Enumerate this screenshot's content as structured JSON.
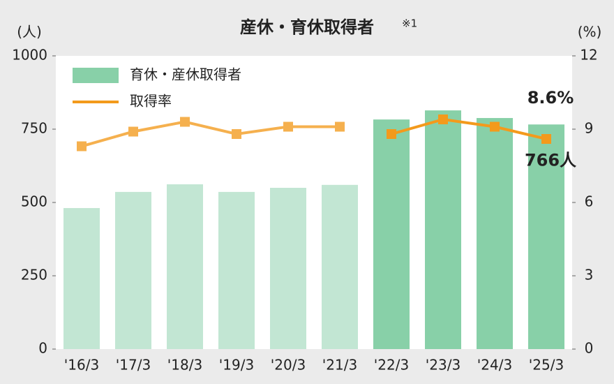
{
  "chart_data": {
    "type": "bar-line",
    "title": "産休・育休取得者",
    "title_note": "※1",
    "y_label": "(人)",
    "y2_label": "(%)",
    "categories": [
      "'16/3",
      "'17/3",
      "'18/3",
      "'19/3",
      "'20/3",
      "'21/3",
      "'22/3",
      "'23/3",
      "'24/3",
      "'25/3"
    ],
    "series": [
      {
        "name": "育休・産休取得者",
        "type": "bar",
        "color": "#88d0a8",
        "colors": [
          "#c2e6d3",
          "#c2e6d3",
          "#c2e6d3",
          "#c2e6d3",
          "#c2e6d3",
          "#c2e6d3",
          "#88d0a8",
          "#88d0a8",
          "#88d0a8",
          "#88d0a8"
        ],
        "values": [
          481,
          536,
          562,
          536,
          550,
          560,
          783,
          814,
          788,
          766
        ],
        "value_labels": [
          null,
          null,
          null,
          null,
          null,
          null,
          null,
          null,
          null,
          "766人"
        ]
      },
      {
        "name": "取得率",
        "type": "line",
        "axis": "y2",
        "color": "#f39a1c",
        "colors": [
          "#f5b04e",
          "#f5b04e",
          "#f5b04e",
          "#f5b04e",
          "#f5b04e",
          "#f5b04e",
          "#f39a1c",
          "#f39a1c",
          "#f39a1c",
          "#f39a1c"
        ],
        "values": [
          8.3,
          8.9,
          9.3,
          8.8,
          9.1,
          9.1,
          8.8,
          9.4,
          9.1,
          8.6
        ],
        "value_labels": [
          null,
          null,
          null,
          null,
          null,
          null,
          null,
          null,
          null,
          "8.6%"
        ]
      }
    ],
    "ylim": [
      0,
      1000
    ],
    "yticks": [
      0,
      250,
      500,
      750,
      1000
    ],
    "y2lim": [
      0,
      12
    ],
    "y2ticks": [
      0,
      3,
      6,
      9,
      12
    ],
    "legend": "top-left"
  }
}
